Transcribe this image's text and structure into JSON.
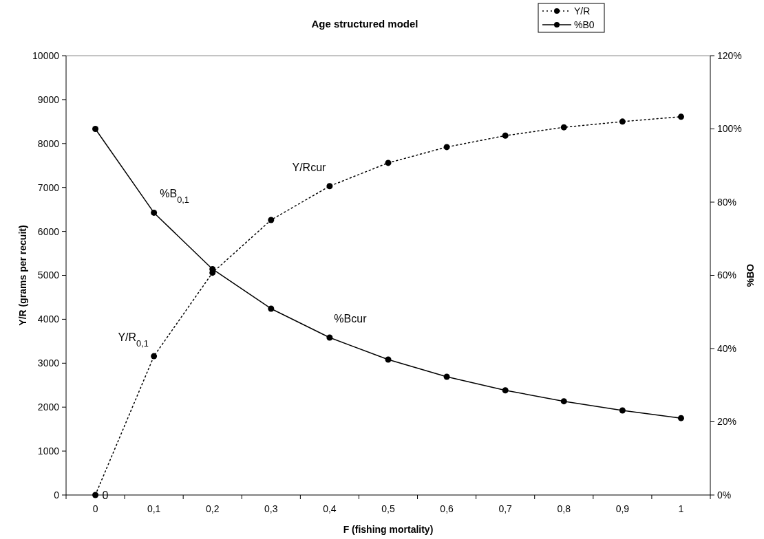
{
  "chart_data": {
    "type": "line",
    "title": "Age structured model",
    "xlabel": "F (fishing mortality)",
    "ylabel": "Y/R (grams per recuit)",
    "y2label": "%BO",
    "categories": [
      "0",
      "0,1",
      "0,2",
      "0,3",
      "0,4",
      "0,5",
      "0,6",
      "0,7",
      "0,8",
      "0,9",
      "1"
    ],
    "series": [
      {
        "name": "Y/R",
        "color": "#000000",
        "line_style": "dotted",
        "values": [
          0,
          3160,
          5060,
          6260,
          7030,
          7560,
          7920,
          8180,
          8370,
          8500,
          8610
        ],
        "value_labels": [
          "0",
          null,
          null,
          null,
          null,
          null,
          null,
          null,
          null,
          null,
          null
        ]
      },
      {
        "name": "%B0",
        "color": "#000000",
        "line_style": "solid",
        "axis": "y2",
        "values": [
          100,
          77.1,
          61.7,
          50.9,
          43.0,
          37.0,
          32.3,
          28.6,
          25.6,
          23.1,
          21.0
        ]
      }
    ],
    "ylim": [
      0,
      10000
    ],
    "yticks": [
      0,
      1000,
      2000,
      3000,
      4000,
      5000,
      6000,
      7000,
      8000,
      9000,
      10000
    ],
    "y2lim": [
      0,
      120
    ],
    "y2ticks": [
      {
        "value": 0,
        "label": "0%"
      },
      {
        "value": 20,
        "label": "20%"
      },
      {
        "value": 40,
        "label": "40%"
      },
      {
        "value": 60,
        "label": "60%"
      },
      {
        "value": 80,
        "label": "80%"
      },
      {
        "value": 100,
        "label": "100%"
      },
      {
        "value": 120,
        "label": "120%"
      }
    ],
    "annotations": [
      {
        "text": "%B$_{0,1}$",
        "x": "0,1",
        "y": 6425
      },
      {
        "text": "Y/R$_{0,1}$",
        "x": "0,1",
        "y": 3160
      },
      {
        "text": "Y/Rcur",
        "x": "0,4",
        "y": 7030
      },
      {
        "text": "%Bcur",
        "x": "0,4",
        "y": 3583
      }
    ],
    "marker": "circle",
    "legend": "top",
    "grid": false
  }
}
